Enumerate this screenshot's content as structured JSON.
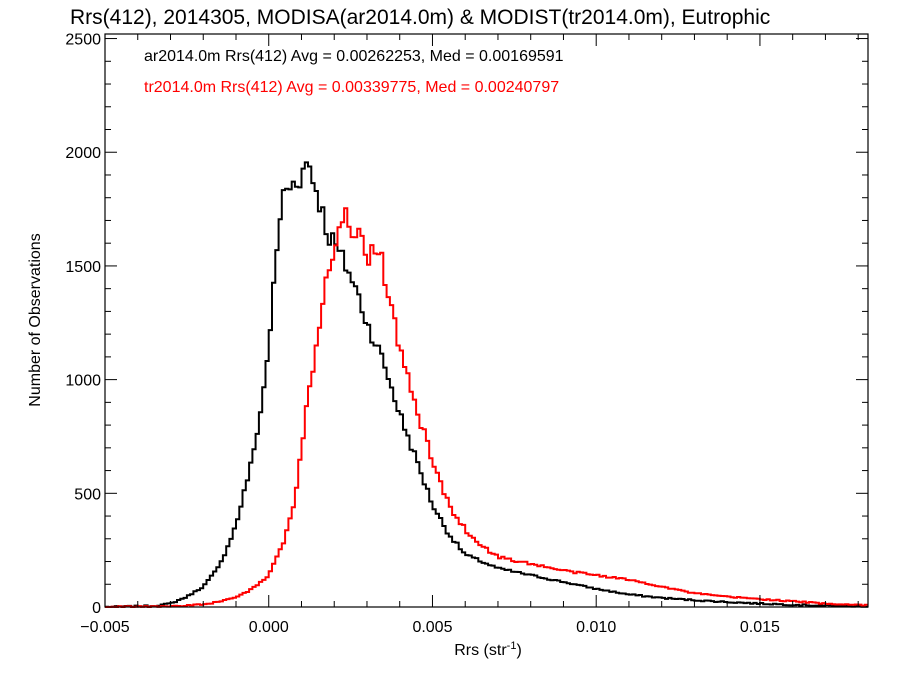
{
  "chart_data": {
    "type": "histogram",
    "title": "Rrs(412), 2014305, MODISA(ar2014.0m) & MODIST(tr2014.0m), Eutrophic",
    "xlabel": "Rrs (str",
    "xlabel_sup": "-1",
    "xlabel_close": ")",
    "ylabel": "Number of Observations",
    "xlim": [
      -0.005,
      0.0183
    ],
    "ylim": [
      0,
      2520
    ],
    "x_ticks": [
      -0.005,
      0.0,
      0.005,
      0.01,
      0.015
    ],
    "x_tick_labels": [
      "−0.005",
      "0.000",
      "0.005",
      "0.010",
      "0.015"
    ],
    "y_ticks": [
      0,
      500,
      1000,
      1500,
      2000,
      2500
    ],
    "y_tick_labels": [
      "0",
      "500",
      "1000",
      "1500",
      "2000",
      "2500"
    ],
    "grid": false,
    "legend_position": "top-left",
    "legend": [
      {
        "text": "ar2014.0m Rrs(412) Avg = 0.00262253, Med = 0.00169591",
        "color": "#000000"
      },
      {
        "text": "tr2014.0m Rrs(412) Avg = 0.00339775, Med = 0.00240797",
        "color": "#ff0000"
      }
    ],
    "series": [
      {
        "color": "#000000",
        "points": [
          [
            -0.005,
            0
          ],
          [
            -0.0035,
            5
          ],
          [
            -0.003,
            15
          ],
          [
            -0.0025,
            45
          ],
          [
            -0.002,
            90
          ],
          [
            -0.0015,
            180
          ],
          [
            -0.001,
            360
          ],
          [
            -0.0005,
            650
          ],
          [
            -0.0002,
            900
          ],
          [
            0.0,
            1150
          ],
          [
            0.0002,
            1480
          ],
          [
            0.0004,
            1800
          ],
          [
            0.0006,
            1840
          ],
          [
            0.0008,
            1870
          ],
          [
            0.001,
            1900
          ],
          [
            0.0012,
            1970
          ],
          [
            0.0014,
            1860
          ],
          [
            0.0016,
            1760
          ],
          [
            0.0018,
            1640
          ],
          [
            0.002,
            1600
          ],
          [
            0.0022,
            1540
          ],
          [
            0.0024,
            1490
          ],
          [
            0.0026,
            1420
          ],
          [
            0.0028,
            1340
          ],
          [
            0.003,
            1250
          ],
          [
            0.0035,
            1080
          ],
          [
            0.004,
            850
          ],
          [
            0.0045,
            650
          ],
          [
            0.005,
            450
          ],
          [
            0.0055,
            320
          ],
          [
            0.006,
            230
          ],
          [
            0.0065,
            200
          ],
          [
            0.007,
            170
          ],
          [
            0.008,
            140
          ],
          [
            0.009,
            110
          ],
          [
            0.01,
            80
          ],
          [
            0.011,
            55
          ],
          [
            0.012,
            40
          ],
          [
            0.013,
            30
          ],
          [
            0.014,
            22
          ],
          [
            0.015,
            15
          ],
          [
            0.016,
            10
          ],
          [
            0.017,
            6
          ],
          [
            0.0183,
            3
          ]
        ]
      },
      {
        "color": "#ff0000",
        "points": [
          [
            -0.005,
            0
          ],
          [
            -0.003,
            3
          ],
          [
            -0.002,
            10
          ],
          [
            -0.001,
            40
          ],
          [
            -0.0005,
            80
          ],
          [
            0.0,
            140
          ],
          [
            0.0005,
            300
          ],
          [
            0.0008,
            480
          ],
          [
            0.001,
            700
          ],
          [
            0.0012,
            920
          ],
          [
            0.0014,
            1100
          ],
          [
            0.0016,
            1320
          ],
          [
            0.0018,
            1480
          ],
          [
            0.002,
            1600
          ],
          [
            0.0022,
            1700
          ],
          [
            0.0024,
            1730
          ],
          [
            0.0026,
            1650
          ],
          [
            0.0028,
            1610
          ],
          [
            0.003,
            1540
          ],
          [
            0.0032,
            1580
          ],
          [
            0.0034,
            1560
          ],
          [
            0.0036,
            1420
          ],
          [
            0.0038,
            1280
          ],
          [
            0.004,
            1130
          ],
          [
            0.0045,
            880
          ],
          [
            0.005,
            640
          ],
          [
            0.0055,
            450
          ],
          [
            0.006,
            340
          ],
          [
            0.0065,
            270
          ],
          [
            0.007,
            220
          ],
          [
            0.008,
            190
          ],
          [
            0.009,
            160
          ],
          [
            0.01,
            140
          ],
          [
            0.011,
            120
          ],
          [
            0.012,
            90
          ],
          [
            0.013,
            60
          ],
          [
            0.014,
            45
          ],
          [
            0.015,
            35
          ],
          [
            0.016,
            25
          ],
          [
            0.017,
            15
          ],
          [
            0.0183,
            8
          ]
        ]
      }
    ]
  }
}
